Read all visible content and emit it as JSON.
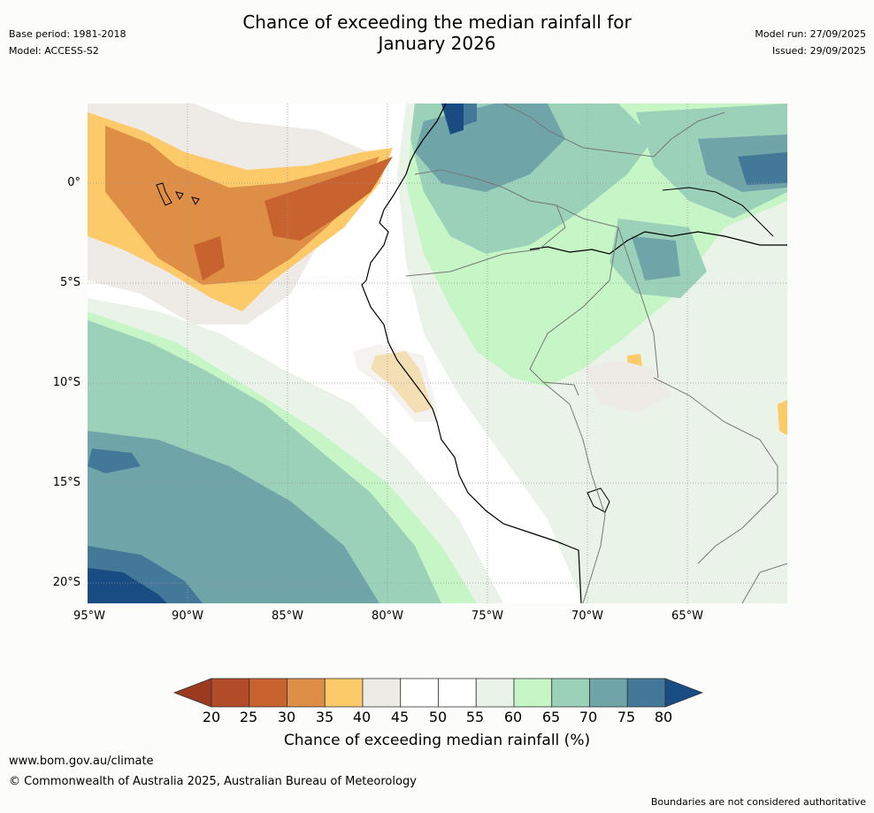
{
  "title": {
    "line1": "Chance of exceeding the median rainfall for",
    "line2": "January 2026"
  },
  "meta": {
    "base_period": "Base period: 1981-2018",
    "model": "Model: ACCESS-S2",
    "model_run": "Model run: 27/09/2025",
    "issued": "Issued: 29/09/2025"
  },
  "axes": {
    "lat_labels": [
      "0°",
      "5°S",
      "10°S",
      "15°S",
      "20°S"
    ],
    "lon_labels": [
      "95°W",
      "90°W",
      "85°W",
      "80°W",
      "75°W",
      "70°W",
      "65°W"
    ]
  },
  "colorbar": {
    "ticks": [
      "20",
      "25",
      "30",
      "35",
      "40",
      "45",
      "50",
      "55",
      "60",
      "65",
      "70",
      "75",
      "80"
    ],
    "colors": [
      "#9b3a1f",
      "#b24b27",
      "#c8622f",
      "#df8f45",
      "#fdca6a",
      "#eeebe6",
      "#ffffff",
      "#ffffff",
      "#e9f3e8",
      "#c6f5c6",
      "#9bd0b9",
      "#6fa5a8",
      "#437899",
      "#184c83"
    ],
    "label": "Chance of exceeding median rainfall (%)"
  },
  "footer": {
    "url": "www.bom.gov.au/climate",
    "copyright": "© Commonwealth of Australia 2025, Australian Bureau of Meteorology",
    "disclaimer": "Boundaries are not considered authoritative"
  }
}
